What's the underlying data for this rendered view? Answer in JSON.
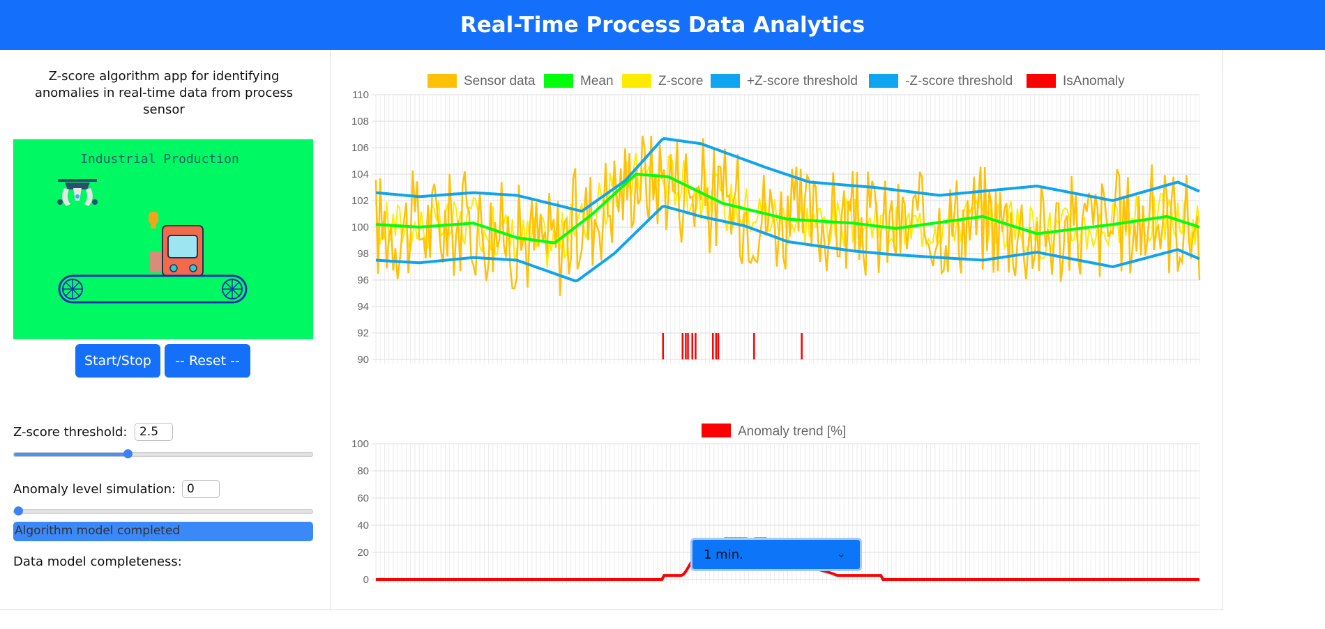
{
  "header": {
    "title": "Real-Time Process Data Analytics"
  },
  "sidebar": {
    "description": "Z-score algorithm app for identifying anomalies in real-time data from process sensor",
    "animation_title": "Industrial Production",
    "start_stop_label": "Start/Stop",
    "reset_label": "-- Reset --",
    "zscore_label": "Z-score threshold:",
    "zscore_value": "2.5",
    "zscore_slider_fraction": 0.38,
    "anomaly_label": "Anomaly level simulation:",
    "anomaly_value": "0",
    "anomaly_slider_fraction": 0.0,
    "completeness_label": "Data model completeness:",
    "completeness_text": "Algorithm model completed",
    "completeness_fraction": 1.0
  },
  "time_select": {
    "value": "1 min."
  },
  "colors": {
    "sensor": "#ffc107",
    "mean": "#00ff0a",
    "zscore": "#ffeb00",
    "threshold": "#0ea4f0",
    "anomaly": "#ff0000",
    "accent": "#1470fb"
  },
  "chart_data": [
    {
      "type": "line",
      "legend": [
        "Sensor data",
        "Mean",
        "Z-score",
        "+Z-score threshold",
        "-Z-score threshold",
        "IsAnomaly"
      ],
      "ylim": [
        90,
        110
      ],
      "yticks": [
        "110",
        "108",
        "106",
        "104",
        "102",
        "100",
        "98",
        "96",
        "94",
        "92",
        "90"
      ],
      "series": [
        {
          "name": "Mean",
          "keypoints": [
            [
              0,
              100.2
            ],
            [
              40,
              100
            ],
            [
              90,
              100.3
            ],
            [
              130,
              99.2
            ],
            [
              165,
              98.8
            ],
            [
              200,
              101
            ],
            [
              240,
              104
            ],
            [
              270,
              103.8
            ],
            [
              320,
              101.8
            ],
            [
              380,
              100.6
            ],
            [
              440,
              100.3
            ],
            [
              480,
              99.9
            ],
            [
              560,
              100.8
            ],
            [
              610,
              99.5
            ],
            [
              680,
              100.2
            ],
            [
              730,
              100.8
            ],
            [
              760,
              100
            ]
          ]
        },
        {
          "name": "+Z-score threshold",
          "keypoints": [
            [
              0,
              102.6
            ],
            [
              40,
              102.3
            ],
            [
              90,
              102.6
            ],
            [
              130,
              102.4
            ],
            [
              190,
              101.2
            ],
            [
              230,
              103.5
            ],
            [
              265,
              106.7
            ],
            [
              300,
              106.3
            ],
            [
              360,
              104.5
            ],
            [
              400,
              103.4
            ],
            [
              460,
              103
            ],
            [
              520,
              102.4
            ],
            [
              610,
              103.1
            ],
            [
              680,
              102
            ],
            [
              740,
              103.4
            ],
            [
              760,
              102.7
            ]
          ]
        },
        {
          "name": "-Z-score threshold",
          "keypoints": [
            [
              0,
              97.5
            ],
            [
              40,
              97.3
            ],
            [
              90,
              97.7
            ],
            [
              130,
              97.5
            ],
            [
              185,
              95.9
            ],
            [
              220,
              98
            ],
            [
              265,
              101.6
            ],
            [
              300,
              100.8
            ],
            [
              340,
              100.1
            ],
            [
              380,
              98.9
            ],
            [
              440,
              98.2
            ],
            [
              480,
              97.9
            ],
            [
              560,
              97.5
            ],
            [
              610,
              98.1
            ],
            [
              680,
              97
            ],
            [
              740,
              98.3
            ],
            [
              760,
              97.6
            ]
          ]
        }
      ],
      "sensor_data_range": [
        94.8,
        106.9
      ],
      "anomaly_flags_approx_index": [
        265,
        283,
        286,
        288,
        292,
        295,
        311,
        314,
        316,
        349,
        393
      ]
    },
    {
      "type": "line",
      "legend": [
        "Anomaly trend [%]"
      ],
      "ylim": [
        0,
        100
      ],
      "yticks": [
        "100",
        "80",
        "60",
        "40",
        "20",
        "0"
      ],
      "series": [
        {
          "name": "Anomaly trend [%]",
          "keypoints": [
            [
              0,
              0
            ],
            [
              265,
              0
            ],
            [
              266,
              3
            ],
            [
              283,
              3
            ],
            [
              286,
              6
            ],
            [
              289,
              10
            ],
            [
              292,
              14
            ],
            [
              296,
              18
            ],
            [
              298,
              20
            ],
            [
              313,
              20
            ],
            [
              315,
              24
            ],
            [
              318,
              28
            ],
            [
              322,
              30
            ],
            [
              343,
              30
            ],
            [
              345,
              27
            ],
            [
              348,
              27
            ],
            [
              350,
              30
            ],
            [
              360,
              30
            ],
            [
              364,
              26
            ],
            [
              367,
              22
            ],
            [
              369,
              18
            ],
            [
              373,
              14
            ],
            [
              385,
              14
            ],
            [
              387,
              10
            ],
            [
              390,
              8
            ],
            [
              405,
              8
            ],
            [
              415,
              6
            ],
            [
              423,
              4
            ],
            [
              425,
              3
            ],
            [
              444,
              3
            ],
            [
              467,
              3
            ],
            [
              468,
              0
            ],
            [
              760,
              0
            ]
          ]
        }
      ]
    }
  ]
}
